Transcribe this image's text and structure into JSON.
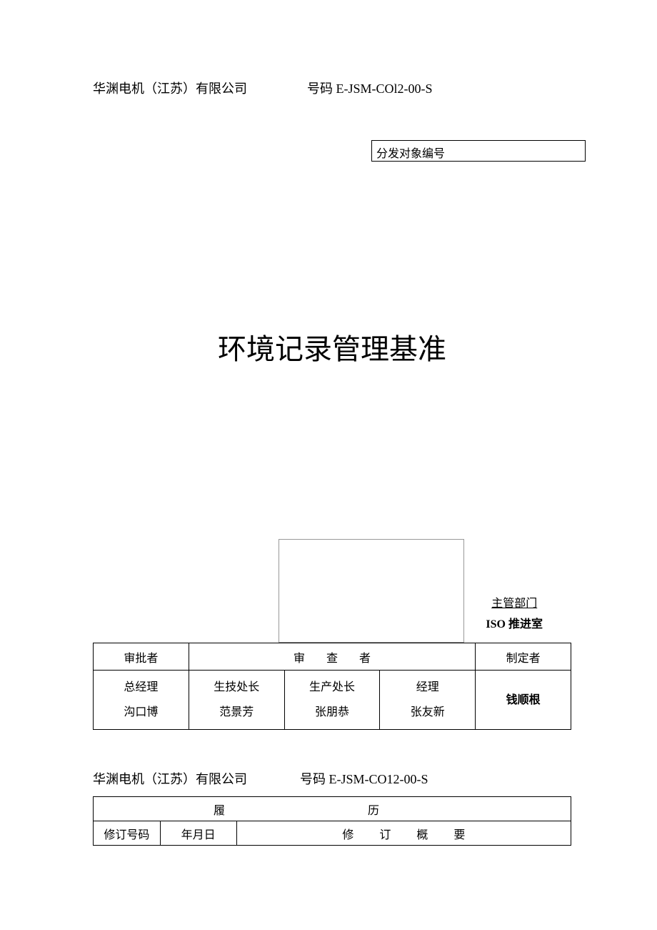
{
  "header": {
    "company": "华渊电机（江苏）有限公司",
    "code_label": "号码",
    "code1": "E-JSM-COl2-00-S",
    "code2": "E-JSM-CO12-00-S"
  },
  "distribution": {
    "label": "分发对象编号"
  },
  "title": "环境记录管理基准",
  "department": {
    "label": "主管部门",
    "name": "ISO 推进室"
  },
  "approval": {
    "headers": {
      "approver": "审批者",
      "reviewer": "审查者",
      "maker": "制定者"
    },
    "roles": {
      "gm_title": "总经理",
      "gm_name": "沟口博",
      "r1_title": "生技处长",
      "r1_name": "范景芳",
      "r2_title": "生产处长",
      "r2_name": "张朋恭",
      "r3_title": "经理",
      "r3_name": "张友新",
      "maker_name": "钱顺根"
    }
  },
  "history": {
    "title": "履历",
    "col1": "修订号码",
    "col2": "年月日",
    "col3": "修订概要"
  },
  "style": {
    "text_color": "#000000",
    "bg_color": "#ffffff",
    "border_color": "#000000",
    "light_border": "#999999",
    "title_fontsize": 40,
    "body_fontsize": 18
  }
}
